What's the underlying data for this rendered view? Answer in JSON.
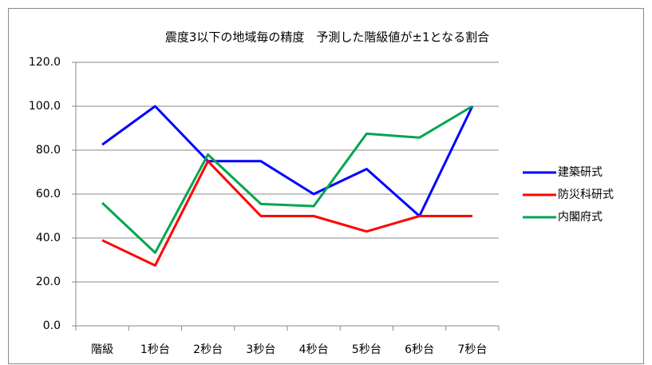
{
  "chart_data": {
    "type": "line",
    "title": "震度3以下の地域毎の精度　予測した階級値が±1となる割合",
    "categories": [
      "階級",
      "1秒台",
      "2秒台",
      "3秒台",
      "4秒台",
      "5秒台",
      "6秒台",
      "7秒台"
    ],
    "series": [
      {
        "name": "建築研式",
        "color": "#0000ff",
        "values": [
          82.5,
          100,
          75,
          75,
          60,
          71.4,
          50,
          100
        ]
      },
      {
        "name": "防災科研式",
        "color": "#ff0000",
        "values": [
          39,
          27.5,
          75,
          50,
          50,
          43,
          50,
          50
        ]
      },
      {
        "name": "内閣府式",
        "color": "#00a650",
        "values": [
          56,
          33.3,
          78,
          55.5,
          54.5,
          87.5,
          85.7,
          100
        ]
      }
    ],
    "ylim": [
      0,
      120
    ],
    "yticks": [
      {
        "value": 0,
        "label": "0.0"
      },
      {
        "value": 20,
        "label": "20.0"
      },
      {
        "value": 40,
        "label": "40.0"
      },
      {
        "value": 60,
        "label": "60.0"
      },
      {
        "value": 80,
        "label": "80.0"
      },
      {
        "value": 100,
        "label": "100.0"
      },
      {
        "value": 120,
        "label": "120.0"
      }
    ],
    "grid": true,
    "legend": "right"
  }
}
